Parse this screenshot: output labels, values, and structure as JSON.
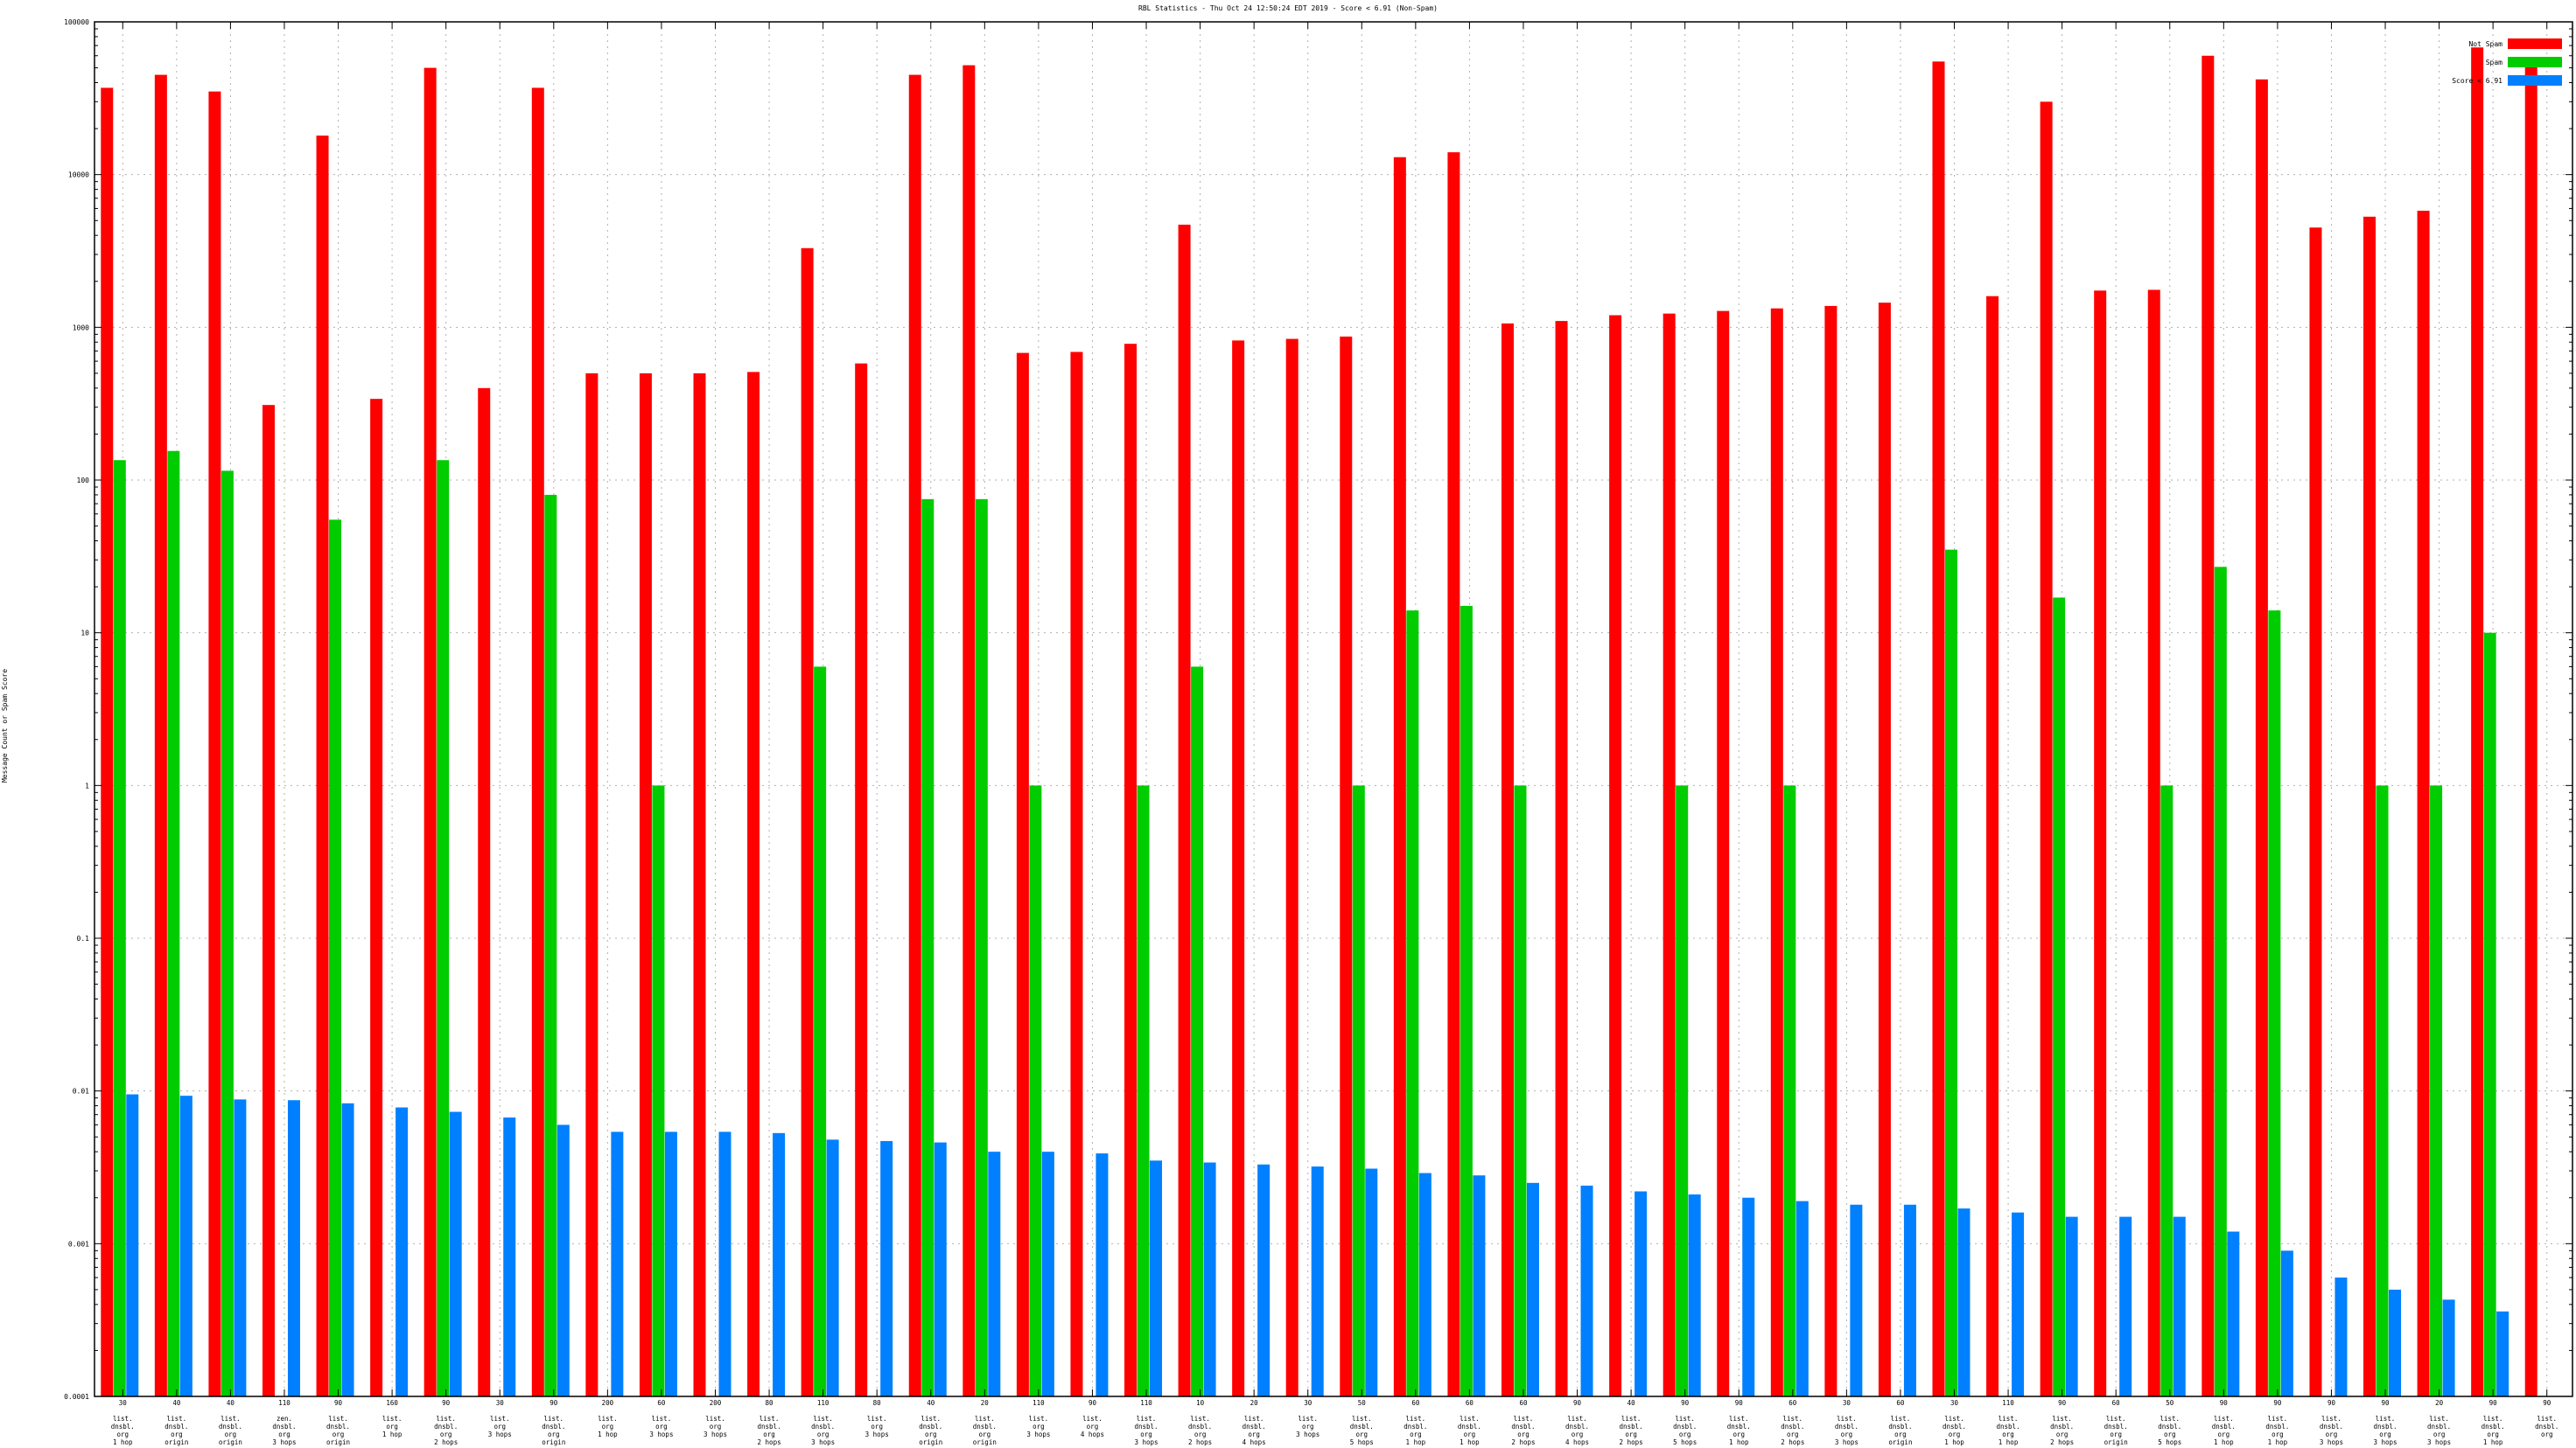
{
  "chart_data": {
    "type": "bar",
    "title": "RBL Statistics - Thu Oct 24 12:50:24 EDT 2019 - Score < 6.91 (Non-Spam)",
    "ylabel": "Message Count or Spam Score",
    "xlabel": "",
    "yscale": "log",
    "ylim": [
      0.0001,
      100000
    ],
    "yticks": [
      "100000",
      "10000",
      "1000",
      "100",
      "10",
      "1",
      "0.1",
      "0.01",
      "0.001",
      "0.0001"
    ],
    "grid": true,
    "legend_position": "top-right",
    "categories": [
      [
        "30",
        "",
        "list.",
        "dnsbl.",
        "org",
        "1 hop"
      ],
      [
        "40",
        "",
        "list.",
        "dnsbl.",
        "org",
        "origin"
      ],
      [
        "40",
        "",
        "list.",
        "dnsbl.",
        "org",
        "origin"
      ],
      [
        "110",
        "",
        "zen.",
        "dnsbl.",
        "org",
        "3 hops"
      ],
      [
        "90",
        "",
        "list.",
        "dnsbl.",
        "org",
        "origin"
      ],
      [
        "160",
        "",
        "list.",
        "org",
        "1 hop"
      ],
      [
        "90",
        "",
        "list.",
        "dnsbl.",
        "org",
        "2 hops"
      ],
      [
        "30",
        "",
        "list.",
        "org",
        "3 hops"
      ],
      [
        "90",
        "",
        "list.",
        "dnsbl.",
        "org",
        "origin"
      ],
      [
        "200",
        "",
        "list.",
        "org",
        "1 hop"
      ],
      [
        "60",
        "",
        "list.",
        "org",
        "3 hops"
      ],
      [
        "200",
        "",
        "list.",
        "org",
        "3 hops"
      ],
      [
        "80",
        "",
        "list.",
        "dnsbl.",
        "org",
        "2 hops"
      ],
      [
        "110",
        "",
        "list.",
        "dnsbl.",
        "org",
        "3 hops"
      ],
      [
        "80",
        "",
        "list.",
        "org",
        "3 hops"
      ],
      [
        "40",
        "",
        "list.",
        "dnsbl.",
        "org",
        "origin"
      ],
      [
        "20",
        "",
        "list.",
        "dnsbl.",
        "org",
        "origin"
      ],
      [
        "110",
        "",
        "list.",
        "org",
        "3 hops"
      ],
      [
        "90",
        "",
        "list.",
        "org",
        "4 hops"
      ],
      [
        "110",
        "",
        "list.",
        "dnsbl.",
        "org",
        "3 hops"
      ],
      [
        "10",
        "",
        "list.",
        "dnsbl.",
        "org",
        "2 hops"
      ],
      [
        "20",
        "",
        "list.",
        "dnsbl.",
        "org",
        "4 hops"
      ],
      [
        "30",
        "",
        "list.",
        "org",
        "3 hops"
      ],
      [
        "50",
        "",
        "list.",
        "dnsbl.",
        "org",
        "5 hops"
      ],
      [
        "60",
        "",
        "list.",
        "dnsbl.",
        "org",
        "1 hop"
      ],
      [
        "60",
        "",
        "list.",
        "dnsbl.",
        "org",
        "1 hop"
      ],
      [
        "60",
        "",
        "list.",
        "dnsbl.",
        "org",
        "2 hops"
      ],
      [
        "90",
        "",
        "list.",
        "dnsbl.",
        "org",
        "4 hops"
      ],
      [
        "40",
        "",
        "list.",
        "dnsbl.",
        "org",
        "2 hops"
      ],
      [
        "90",
        "",
        "list.",
        "dnsbl.",
        "org",
        "5 hops"
      ],
      [
        "90",
        "",
        "list.",
        "dnsbl.",
        "org",
        "1 hop"
      ],
      [
        "60",
        "",
        "list.",
        "dnsbl.",
        "org",
        "2 hops"
      ],
      [
        "30",
        "",
        "list.",
        "dnsbl.",
        "org",
        "3 hops"
      ],
      [
        "60",
        "",
        "list.",
        "dnsbl.",
        "org",
        "origin"
      ],
      [
        "30",
        "",
        "list.",
        "dnsbl.",
        "org",
        "1 hop"
      ],
      [
        "110",
        "",
        "list.",
        "dnsbl.",
        "org",
        "1 hop"
      ],
      [
        "90",
        "",
        "list.",
        "dnsbl.",
        "org",
        "2 hops"
      ],
      [
        "60",
        "",
        "list.",
        "dnsbl.",
        "org",
        "origin"
      ],
      [
        "50",
        "",
        "list.",
        "dnsbl.",
        "org",
        "5 hops"
      ],
      [
        "90",
        "",
        "list.",
        "dnsbl.",
        "org",
        "1 hop"
      ],
      [
        "90",
        "",
        "list.",
        "dnsbl.",
        "org",
        "1 hop"
      ],
      [
        "90",
        "",
        "list.",
        "dnsbl.",
        "org",
        "3 hops"
      ],
      [
        "90",
        "",
        "list.",
        "dnsbl.",
        "org",
        "3 hops"
      ],
      [
        "20",
        "",
        "list.",
        "dnsbl.",
        "org",
        "3 hops"
      ],
      [
        "90",
        "",
        "list.",
        "dnsbl.",
        "org",
        "1 hop"
      ],
      [
        "90",
        "",
        "list.",
        "dnsbl.",
        "org"
      ]
    ],
    "series": [
      {
        "name": "Not Spam",
        "color": "#ff0000",
        "values": [
          37000,
          45000,
          35000,
          310,
          18000,
          340,
          50000,
          400,
          37000,
          500,
          500,
          500,
          510,
          3300,
          580,
          45000,
          52000,
          680,
          690,
          780,
          4700,
          820,
          840,
          870,
          13000,
          14000,
          1060,
          1100,
          1200,
          1230,
          1280,
          1330,
          1380,
          1450,
          55000,
          1600,
          30000,
          1740,
          1760,
          60000,
          42000,
          4500,
          5300,
          5800,
          68000,
          55000
        ]
      },
      {
        "name": "Spam",
        "color": "#00cc00",
        "values": [
          135,
          155,
          115,
          null,
          55,
          null,
          135,
          null,
          80,
          null,
          1,
          null,
          null,
          6,
          null,
          75,
          75,
          1,
          null,
          1,
          6,
          null,
          null,
          1,
          14,
          15,
          1,
          null,
          null,
          1,
          null,
          1,
          null,
          null,
          35,
          null,
          17,
          null,
          1,
          27,
          14,
          null,
          1,
          1,
          10,
          null
        ]
      },
      {
        "name": "Score < 6.91",
        "color": "#0080ff",
        "values": [
          0.0095,
          0.0093,
          0.0088,
          0.0087,
          0.0083,
          0.0078,
          0.0073,
          0.0067,
          0.006,
          0.0054,
          0.0054,
          0.0054,
          0.0053,
          0.0048,
          0.0047,
          0.0046,
          0.004,
          0.004,
          0.0039,
          0.0035,
          0.0034,
          0.0033,
          0.0032,
          0.0031,
          0.0029,
          0.0028,
          0.0025,
          0.0024,
          0.0022,
          0.0021,
          0.002,
          0.0019,
          0.0018,
          0.0018,
          0.0017,
          0.0016,
          0.0015,
          0.0015,
          0.0015,
          0.0012,
          0.0009,
          0.0006,
          0.0005,
          0.00043,
          0.00036,
          null
        ]
      }
    ]
  }
}
